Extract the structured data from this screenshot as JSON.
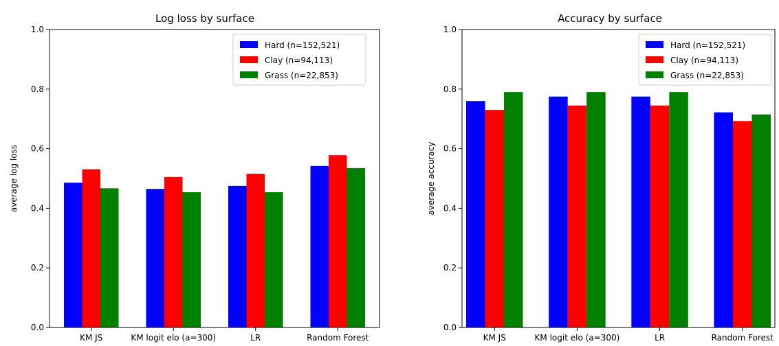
{
  "chart_data": [
    {
      "type": "bar",
      "title": "Log loss by surface",
      "xlabel": "",
      "ylabel": "average log loss",
      "ylim": [
        0,
        1.0
      ],
      "yticks": [
        "0.0",
        "0.2",
        "0.4",
        "0.6",
        "0.8",
        "1.0"
      ],
      "categories": [
        "KM JS",
        "KM logit elo (a=300)",
        "LR",
        "Random Forest"
      ],
      "legend_position": "top-right",
      "series": [
        {
          "name": "Hard (n=152,521)",
          "color": "#0000ff",
          "values": [
            0.486,
            0.465,
            0.475,
            0.542
          ]
        },
        {
          "name": "Clay (n=94,113)",
          "color": "#ff0000",
          "values": [
            0.531,
            0.505,
            0.516,
            0.578
          ]
        },
        {
          "name": "Grass (n=22,853)",
          "color": "#008000",
          "values": [
            0.467,
            0.454,
            0.454,
            0.535
          ]
        }
      ]
    },
    {
      "type": "bar",
      "title": "Accuracy by surface",
      "xlabel": "",
      "ylabel": "average accuracy",
      "ylim": [
        0,
        1.0
      ],
      "yticks": [
        "0.0",
        "0.2",
        "0.4",
        "0.6",
        "0.8",
        "1.0"
      ],
      "categories": [
        "KM JS",
        "KM logit elo (a=300)",
        "LR",
        "Random Forest"
      ],
      "legend_position": "top-right",
      "series": [
        {
          "name": "Hard (n=152,521)",
          "color": "#0000ff",
          "values": [
            0.76,
            0.775,
            0.775,
            0.722
          ]
        },
        {
          "name": "Clay (n=94,113)",
          "color": "#ff0000",
          "values": [
            0.73,
            0.745,
            0.745,
            0.693
          ]
        },
        {
          "name": "Grass (n=22,853)",
          "color": "#008000",
          "values": [
            0.79,
            0.79,
            0.79,
            0.715
          ]
        }
      ]
    }
  ]
}
